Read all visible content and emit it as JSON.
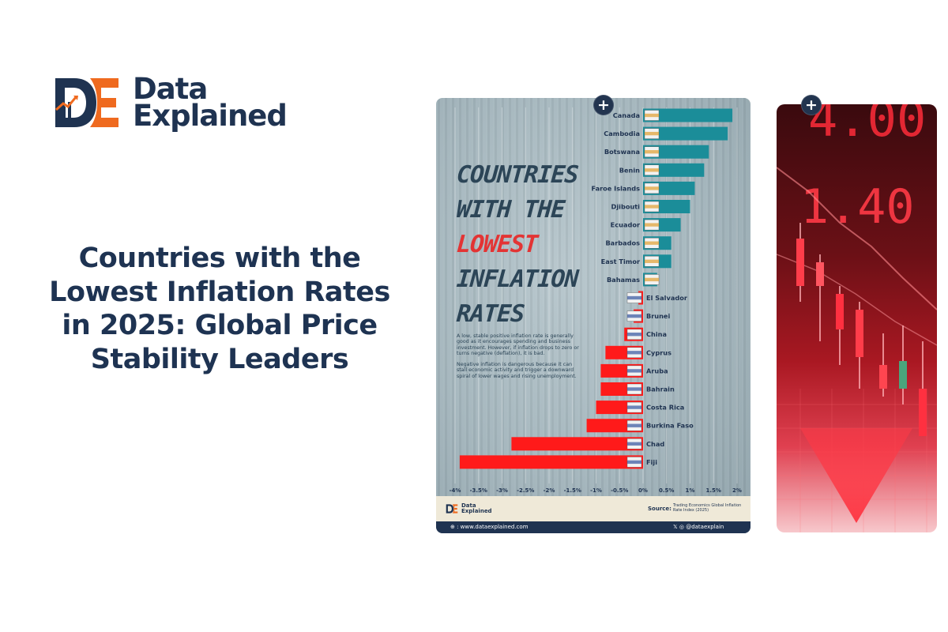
{
  "brand": {
    "line1": "Data",
    "line2": "Explained",
    "colors": {
      "navy": "#1f3351",
      "orange": "#ef6a1f"
    }
  },
  "headline": {
    "lines": [
      "Countries with the",
      "Lowest Inflation Rates",
      "in 2025: Global Price",
      "Stability Leaders"
    ]
  },
  "infographic": {
    "title_lines": [
      "COUNTRIES",
      "WITH THE",
      "LOWEST",
      "INFLATION",
      "RATES"
    ],
    "highlight_index": 2,
    "description": [
      "A low, stable positive inflation rate is generally good as it encourages spending and business investment. However, if inflation drops to zero or turns negative (deflation), it is bad.",
      "Negative inflation is dangerous because it can stall economic activity and trigger a downward spiral of lower wages and rising unemployment."
    ],
    "footer": {
      "logo_line1": "Data",
      "logo_line2": "Explained",
      "source_label": "Source:",
      "source_text": "Trading Economics Global Inflation Rate Index (2025)",
      "website": "⊕ : www.dataexplained.com",
      "social": "𝕏 ◎ @dataexplain"
    },
    "add_button_label": "+"
  },
  "chart_data": {
    "type": "bar",
    "orientation": "horizontal",
    "categories": [
      "Canada",
      "Cambodia",
      "Botswana",
      "Benin",
      "Faroe Islands",
      "Djibouti",
      "Ecuador",
      "Barbados",
      "East Timor",
      "Bahamas",
      "El Salvador",
      "Brunei",
      "China",
      "Cyprus",
      "Aruba",
      "Bahrain",
      "Costa Rica",
      "Burkina Faso",
      "Chad",
      "Fiji"
    ],
    "values": [
      1.9,
      1.8,
      1.4,
      1.3,
      1.1,
      1.0,
      0.8,
      0.6,
      0.6,
      0.3,
      -0.1,
      -0.2,
      -0.4,
      -0.8,
      -0.9,
      -0.9,
      -1.0,
      -1.2,
      -2.8,
      -3.9
    ],
    "xlim": [
      -4,
      2
    ],
    "xticks": [
      "-4%",
      "-3.5%",
      "-3%",
      "-2.5%",
      "-2%",
      "-1.5%",
      "-1%",
      "-0.5%",
      "0%",
      "0.5%",
      "1%",
      "1.5%",
      "2%"
    ],
    "colors": {
      "positive": "#1b8d99",
      "negative": "#ff1a1a"
    },
    "grid": true
  },
  "stock_image": {
    "digits_top": "4.00",
    "digits_mid": "1.40",
    "add_button_label": "+"
  }
}
